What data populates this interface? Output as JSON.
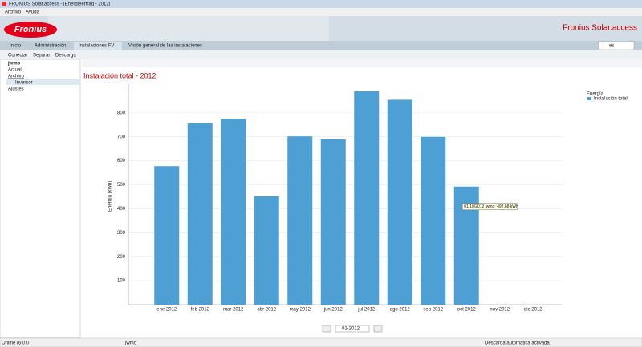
{
  "window": {
    "title": "FRONIUS Solar.access - [Energieertrag - 2012]"
  },
  "menu": [
    "Archivo",
    "Ayuda"
  ],
  "header": {
    "logo": "Fronius",
    "product": "Fronius Solar.access",
    "language": "es"
  },
  "tabs": [
    "Inicio",
    "Administración",
    "Instalaciones FV",
    "Visión general de las instalaciones"
  ],
  "toolbar": [
    "Conectar",
    "Separar",
    "Descarga"
  ],
  "tree": [
    "jwmo",
    "Actual",
    "Archivo",
    "Inversor",
    "Ajustes"
  ],
  "chart_data": {
    "type": "bar",
    "title": "Instalación total - 2012",
    "y_label": "Energía [kWh]",
    "legend_title": "Energía",
    "categories": [
      "ene 2012",
      "feb 2012",
      "mar 2012",
      "abr 2012",
      "may 2012",
      "jun 2012",
      "jul 2012",
      "ago 2012",
      "sep 2012",
      "oct 2012",
      "nov 2012",
      "dic 2012"
    ],
    "series": [
      {
        "name": "Instalación total",
        "color": "#4d9fd4",
        "values": [
          578,
          757,
          775,
          452,
          702,
          690,
          890,
          855,
          700,
          492.68,
          null,
          null
        ]
      }
    ],
    "ylim": [
      0,
      920
    ],
    "yticks": [
      100,
      200,
      300,
      400,
      500,
      600,
      700,
      800
    ],
    "grid": true,
    "tooltip": "01/10/2012 jwmo: 492,68 kWh"
  },
  "period": "01-2012",
  "status": [
    "Online (6.0.0)",
    "jwmo",
    "Descarga automática activada"
  ]
}
